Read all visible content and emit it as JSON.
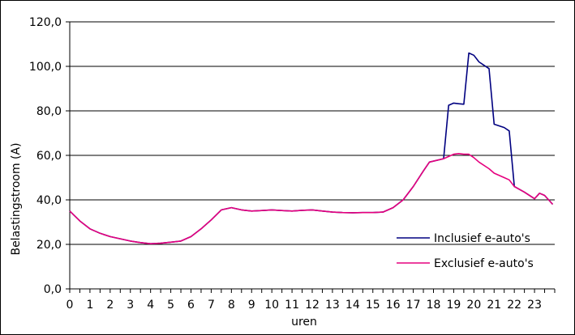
{
  "chart_data": {
    "type": "line",
    "xlabel": "uren",
    "ylabel": "Belastingstroom (A)",
    "ylim": [
      0,
      120
    ],
    "yticks": [
      "0,0",
      "20,0",
      "40,0",
      "60,0",
      "80,0",
      "100,0",
      "120,0"
    ],
    "xlim": [
      0,
      24
    ],
    "xticks": [
      "0",
      "1",
      "2",
      "3",
      "4",
      "5",
      "6",
      "7",
      "8",
      "9",
      "10",
      "11",
      "12",
      "13",
      "14",
      "15",
      "16",
      "17",
      "18",
      "19",
      "20",
      "21",
      "22",
      "23"
    ],
    "grid": "horizontal",
    "legend_position": "bottom-right",
    "series": [
      {
        "name": "Inclusief e-auto's",
        "color": "#000080",
        "x": [
          0,
          0.5,
          1,
          1.5,
          2,
          2.5,
          3,
          3.5,
          4,
          4.5,
          5,
          5.5,
          6,
          6.5,
          7,
          7.5,
          8,
          8.5,
          9,
          9.5,
          10,
          10.5,
          11,
          11.5,
          12,
          12.5,
          13,
          13.5,
          14,
          14.5,
          15,
          15.5,
          16,
          16.5,
          17,
          17.5,
          17.8,
          18.5,
          18.75,
          19,
          19.25,
          19.5,
          19.75,
          20,
          20.25,
          20.75,
          21,
          21.5,
          21.75,
          22,
          22.5,
          23,
          23.25,
          23.5,
          23.9
        ],
        "y": [
          35,
          30.5,
          27,
          25,
          23.5,
          22.5,
          21.5,
          20.8,
          20.3,
          20.5,
          21,
          21.5,
          23.5,
          27,
          31,
          35.5,
          36.5,
          35.5,
          35,
          35.2,
          35.5,
          35.2,
          35,
          35.3,
          35.5,
          35,
          34.5,
          34.3,
          34.2,
          34.3,
          34.3,
          34.5,
          36.5,
          40,
          46,
          53,
          57,
          58.5,
          82.5,
          83.5,
          83.2,
          83,
          106,
          105,
          102,
          99,
          74,
          72.5,
          71,
          46,
          43.5,
          40.5,
          43,
          42,
          38
        ]
      },
      {
        "name": "Exclusief e-auto's",
        "color": "#e6007e",
        "x": [
          0,
          0.5,
          1,
          1.5,
          2,
          2.5,
          3,
          3.5,
          4,
          4.5,
          5,
          5.5,
          6,
          6.5,
          7,
          7.5,
          8,
          8.5,
          9,
          9.5,
          10,
          10.5,
          11,
          11.5,
          12,
          12.5,
          13,
          13.5,
          14,
          14.5,
          15,
          15.5,
          16,
          16.5,
          17,
          17.5,
          17.8,
          18.5,
          18.75,
          19,
          19.25,
          19.5,
          19.75,
          20,
          20.25,
          20.75,
          21,
          21.5,
          21.75,
          22,
          22.5,
          23,
          23.25,
          23.5,
          23.9
        ],
        "y": [
          35,
          30.5,
          27,
          25,
          23.5,
          22.5,
          21.5,
          20.8,
          20.3,
          20.5,
          21,
          21.5,
          23.5,
          27,
          31,
          35.5,
          36.5,
          35.5,
          35,
          35.2,
          35.5,
          35.2,
          35,
          35.3,
          35.5,
          35,
          34.5,
          34.3,
          34.2,
          34.3,
          34.3,
          34.5,
          36.5,
          40,
          46,
          53,
          57,
          58.5,
          59.5,
          60.5,
          60.8,
          60.5,
          60.5,
          59,
          57,
          54,
          52,
          50,
          49,
          46,
          43.5,
          40.5,
          43,
          42,
          38
        ]
      }
    ]
  }
}
